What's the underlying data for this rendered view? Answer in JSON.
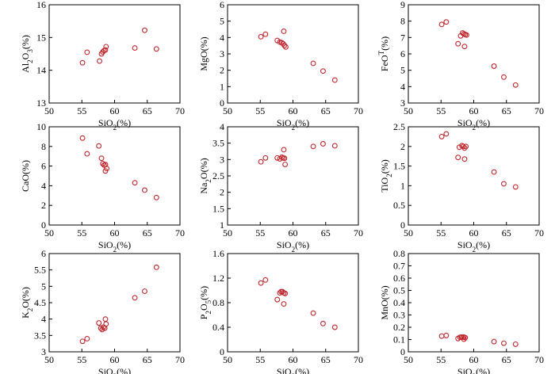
{
  "figure": {
    "colors": {
      "marker": "#c0272d",
      "axis": "#000000"
    },
    "xlabel": {
      "base": "SiO",
      "sub": "2",
      "tail": "(%)"
    }
  },
  "chart_data": [
    {
      "type": "scatter",
      "title": "",
      "ylabel": {
        "base": "Al",
        "sub": "2",
        "mid": "O",
        "sub2": "3",
        "tail": "(%)"
      },
      "xlim": [
        50,
        70
      ],
      "xticks": [
        50,
        55,
        60,
        65,
        70
      ],
      "ylim": [
        13,
        16
      ],
      "yticks": [
        13,
        14,
        15,
        16
      ],
      "points": [
        [
          55.1,
          14.23
        ],
        [
          55.8,
          14.55
        ],
        [
          57.7,
          14.28
        ],
        [
          58.0,
          14.5
        ],
        [
          58.2,
          14.56
        ],
        [
          58.4,
          14.6
        ],
        [
          58.6,
          14.62
        ],
        [
          58.7,
          14.72
        ],
        [
          63.1,
          14.68
        ],
        [
          64.6,
          15.22
        ],
        [
          66.4,
          14.65
        ]
      ]
    },
    {
      "type": "scatter",
      "title": "",
      "ylabel": {
        "base": "MgO",
        "tail": "(%)"
      },
      "xlim": [
        50,
        70
      ],
      "xticks": [
        50,
        55,
        60,
        65,
        70
      ],
      "ylim": [
        0,
        6
      ],
      "yticks": [
        0,
        1,
        2,
        3,
        4,
        5,
        6
      ],
      "points": [
        [
          55.1,
          4.05
        ],
        [
          55.8,
          4.2
        ],
        [
          57.6,
          3.82
        ],
        [
          58.0,
          3.72
        ],
        [
          58.3,
          3.68
        ],
        [
          58.5,
          3.62
        ],
        [
          58.7,
          3.52
        ],
        [
          58.9,
          3.42
        ],
        [
          58.6,
          4.38
        ],
        [
          63.1,
          2.42
        ],
        [
          64.6,
          1.95
        ],
        [
          66.4,
          1.4
        ]
      ]
    },
    {
      "type": "scatter",
      "title": "",
      "ylabel": {
        "base": "FeO",
        "sup": "T",
        "tail": "(%)"
      },
      "xlim": [
        50,
        70
      ],
      "xticks": [
        50,
        55,
        60,
        65,
        70
      ],
      "ylim": [
        3,
        9
      ],
      "yticks": [
        3,
        4,
        5,
        6,
        7,
        8,
        9
      ],
      "points": [
        [
          55.1,
          7.8
        ],
        [
          55.8,
          7.95
        ],
        [
          57.6,
          6.62
        ],
        [
          58.0,
          7.1
        ],
        [
          58.3,
          7.28
        ],
        [
          58.5,
          7.22
        ],
        [
          58.7,
          7.18
        ],
        [
          58.9,
          7.15
        ],
        [
          58.6,
          6.45
        ],
        [
          63.1,
          5.25
        ],
        [
          64.6,
          4.58
        ],
        [
          66.4,
          4.1
        ]
      ]
    },
    {
      "type": "scatter",
      "title": "",
      "ylabel": {
        "base": "CaO",
        "tail": "(%)"
      },
      "xlim": [
        50,
        70
      ],
      "xticks": [
        50,
        55,
        60,
        65,
        70
      ],
      "ylim": [
        0,
        10
      ],
      "yticks": [
        0,
        2,
        4,
        6,
        8,
        10
      ],
      "points": [
        [
          55.1,
          8.85
        ],
        [
          55.8,
          7.25
        ],
        [
          57.6,
          8.05
        ],
        [
          58.0,
          6.8
        ],
        [
          58.2,
          6.25
        ],
        [
          58.4,
          6.1
        ],
        [
          58.6,
          6.15
        ],
        [
          58.8,
          5.75
        ],
        [
          58.6,
          5.5
        ],
        [
          63.1,
          4.3
        ],
        [
          64.6,
          3.55
        ],
        [
          66.4,
          2.8
        ]
      ]
    },
    {
      "type": "scatter",
      "title": "",
      "ylabel": {
        "base": "Na",
        "sub": "2",
        "mid": "O",
        "tail": "(%)"
      },
      "xlim": [
        50,
        70
      ],
      "xticks": [
        50,
        55,
        60,
        65,
        70
      ],
      "ylim": [
        1,
        4
      ],
      "yticks": [
        1,
        1.5,
        2,
        2.5,
        3,
        3.5,
        4
      ],
      "points": [
        [
          55.1,
          2.93
        ],
        [
          55.8,
          3.05
        ],
        [
          57.6,
          3.05
        ],
        [
          58.0,
          3.02
        ],
        [
          58.3,
          3.07
        ],
        [
          58.5,
          3.05
        ],
        [
          58.7,
          3.04
        ],
        [
          58.6,
          3.3
        ],
        [
          58.8,
          2.85
        ],
        [
          63.1,
          3.4
        ],
        [
          64.6,
          3.48
        ],
        [
          66.4,
          3.42
        ]
      ]
    },
    {
      "type": "scatter",
      "title": "",
      "ylabel": {
        "base": "TiO",
        "sub": "2",
        "tail": "(%)"
      },
      "xlim": [
        50,
        70
      ],
      "xticks": [
        50,
        55,
        60,
        65,
        70
      ],
      "ylim": [
        0,
        2.5
      ],
      "yticks": [
        0,
        0.5,
        1,
        1.5,
        2,
        2.5
      ],
      "points": [
        [
          55.1,
          2.25
        ],
        [
          55.8,
          2.32
        ],
        [
          57.6,
          1.72
        ],
        [
          57.8,
          1.98
        ],
        [
          58.2,
          2.02
        ],
        [
          58.4,
          2.0
        ],
        [
          58.6,
          1.96
        ],
        [
          58.8,
          2.0
        ],
        [
          58.6,
          1.68
        ],
        [
          63.1,
          1.35
        ],
        [
          64.6,
          1.05
        ],
        [
          66.4,
          0.97
        ]
      ]
    },
    {
      "type": "scatter",
      "title": "",
      "ylabel": {
        "base": "K",
        "sub": "2",
        "mid": "O",
        "tail": "(%)"
      },
      "xlim": [
        50,
        70
      ],
      "xticks": [
        50,
        55,
        60,
        65,
        70
      ],
      "ylim": [
        3,
        6
      ],
      "yticks": [
        3,
        3.5,
        4,
        4.5,
        5,
        5.5,
        6
      ],
      "points": [
        [
          55.1,
          3.32
        ],
        [
          55.8,
          3.4
        ],
        [
          57.6,
          3.88
        ],
        [
          57.9,
          3.72
        ],
        [
          58.1,
          3.68
        ],
        [
          58.3,
          3.75
        ],
        [
          58.5,
          3.72
        ],
        [
          58.7,
          3.85
        ],
        [
          58.6,
          4.0
        ],
        [
          63.1,
          4.65
        ],
        [
          64.6,
          4.85
        ],
        [
          66.4,
          5.58
        ]
      ]
    },
    {
      "type": "scatter",
      "title": "",
      "ylabel": {
        "base": "P",
        "sub": "2",
        "mid": "O",
        "sub2": "5",
        "tail": "(%)"
      },
      "xlim": [
        50,
        70
      ],
      "xticks": [
        50,
        55,
        60,
        65,
        70
      ],
      "ylim": [
        0,
        1.6
      ],
      "yticks": [
        0,
        0.4,
        0.8,
        1.2,
        1.6
      ],
      "points": [
        [
          55.1,
          1.12
        ],
        [
          55.8,
          1.17
        ],
        [
          57.6,
          0.85
        ],
        [
          58.0,
          0.96
        ],
        [
          58.2,
          0.98
        ],
        [
          58.4,
          0.98
        ],
        [
          58.6,
          0.96
        ],
        [
          58.8,
          0.95
        ],
        [
          58.6,
          0.78
        ],
        [
          63.1,
          0.63
        ],
        [
          64.6,
          0.46
        ],
        [
          66.4,
          0.4
        ]
      ]
    },
    {
      "type": "scatter",
      "title": "",
      "ylabel": {
        "base": "MnO",
        "tail": "(%)"
      },
      "xlim": [
        50,
        70
      ],
      "xticks": [
        50,
        55,
        60,
        65,
        70
      ],
      "ylim": [
        0,
        0.8
      ],
      "yticks": [
        0,
        0.1,
        0.2,
        0.3,
        0.4,
        0.5,
        0.6,
        0.7,
        0.8
      ],
      "points": [
        [
          55.1,
          0.128
        ],
        [
          55.8,
          0.133
        ],
        [
          57.6,
          0.108
        ],
        [
          57.9,
          0.118
        ],
        [
          58.1,
          0.12
        ],
        [
          58.3,
          0.119
        ],
        [
          58.5,
          0.12
        ],
        [
          58.7,
          0.115
        ],
        [
          58.5,
          0.103
        ],
        [
          63.1,
          0.083
        ],
        [
          64.6,
          0.07
        ],
        [
          66.4,
          0.062
        ]
      ]
    }
  ]
}
